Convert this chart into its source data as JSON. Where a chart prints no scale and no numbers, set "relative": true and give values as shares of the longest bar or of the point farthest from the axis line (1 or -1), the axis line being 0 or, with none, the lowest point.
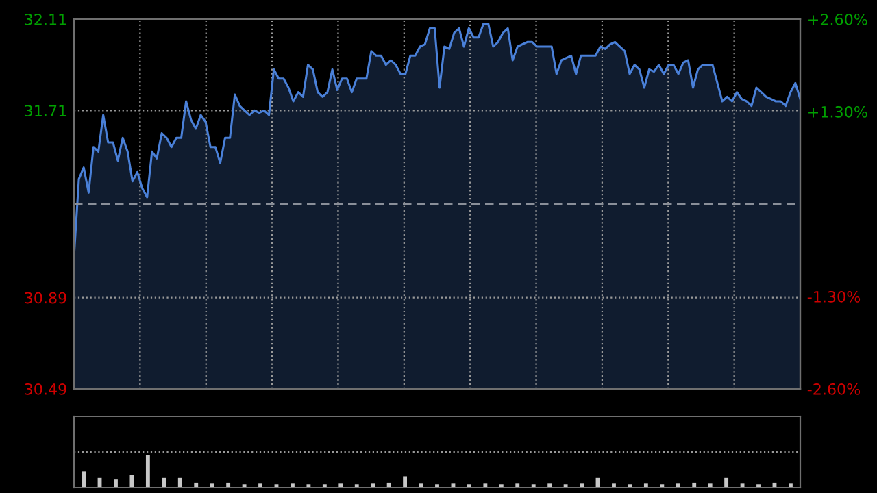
{
  "chart_data": [
    {
      "type": "area",
      "color": "#4a80d8",
      "categories": [
        null,
        null,
        null,
        null,
        null,
        null,
        null,
        null,
        null,
        null,
        null,
        null,
        null,
        null,
        null,
        null,
        null,
        null,
        null,
        null,
        null,
        null,
        null,
        null,
        null,
        null,
        null,
        null,
        null,
        null,
        null,
        null,
        null,
        null,
        null,
        null,
        null,
        null,
        null,
        null,
        null,
        null,
        null,
        null,
        null,
        null,
        null,
        null,
        null,
        null,
        null,
        null,
        null,
        null,
        null,
        null,
        null,
        null,
        null,
        null,
        null,
        null,
        null,
        null,
        null,
        null,
        null,
        null,
        null,
        null,
        null,
        null,
        null,
        null,
        null,
        null,
        null,
        null,
        null,
        null,
        null,
        null,
        null,
        null,
        null,
        null,
        null,
        null,
        null,
        null,
        null,
        null,
        null,
        null,
        null,
        null,
        null,
        null,
        null,
        null,
        null,
        null,
        null,
        null,
        null,
        null,
        null,
        null,
        null,
        null,
        null,
        null,
        null,
        null,
        null,
        null,
        null,
        null,
        null,
        null,
        null,
        null,
        null,
        null,
        null,
        null,
        null,
        null,
        null,
        null,
        null,
        null,
        null,
        null,
        null,
        null,
        null,
        null,
        null,
        null,
        null,
        null,
        null,
        null,
        null,
        null,
        null,
        null,
        null,
        null
      ],
      "values": [
        31.07,
        31.41,
        31.46,
        31.35,
        31.55,
        31.53,
        31.69,
        31.57,
        31.57,
        31.49,
        31.59,
        31.53,
        31.4,
        31.44,
        31.37,
        31.33,
        31.53,
        31.5,
        31.61,
        31.59,
        31.55,
        31.59,
        31.59,
        31.75,
        31.67,
        31.63,
        31.69,
        31.66,
        31.55,
        31.55,
        31.48,
        31.59,
        31.59,
        31.78,
        31.73,
        31.71,
        31.69,
        31.71,
        31.7,
        31.71,
        31.69,
        31.89,
        31.85,
        31.85,
        31.81,
        31.75,
        31.79,
        31.77,
        31.91,
        31.89,
        31.79,
        31.77,
        31.79,
        31.89,
        31.8,
        31.85,
        31.85,
        31.79,
        31.85,
        31.85,
        31.85,
        31.97,
        31.95,
        31.95,
        31.91,
        31.93,
        31.91,
        31.87,
        31.87,
        31.95,
        31.95,
        31.99,
        32.0,
        32.07,
        32.07,
        31.81,
        31.99,
        31.98,
        32.05,
        32.07,
        31.99,
        32.07,
        32.03,
        32.03,
        32.09,
        32.09,
        31.99,
        32.01,
        32.05,
        32.07,
        31.93,
        31.99,
        32.0,
        32.01,
        32.01,
        31.99,
        31.99,
        31.99,
        31.99,
        31.87,
        31.93,
        31.94,
        31.95,
        31.87,
        31.95,
        31.95,
        31.95,
        31.95,
        31.99,
        31.98,
        32.0,
        32.01,
        31.99,
        31.97,
        31.87,
        31.91,
        31.89,
        31.81,
        31.89,
        31.88,
        31.91,
        31.87,
        31.91,
        31.91,
        31.87,
        31.92,
        31.93,
        31.81,
        31.89,
        31.91,
        31.91,
        31.91,
        31.83,
        31.75,
        31.77,
        31.75,
        31.79,
        31.76,
        31.75,
        31.73,
        31.81,
        31.79,
        31.77,
        31.76,
        31.75,
        31.75,
        31.73,
        31.79,
        31.83,
        31.76
      ],
      "ylim": [
        30.49,
        32.11
      ],
      "yticks": [
        32.11,
        31.71,
        30.89,
        30.49
      ],
      "y2lim": [
        -2.6,
        2.6
      ],
      "y2ticks": [
        {
          "value": 2.6,
          "label": "+2.60%"
        },
        {
          "value": 1.3,
          "label": "+1.30%"
        },
        {
          "value": -1.3,
          "label": "-1.30%"
        },
        {
          "value": -2.6,
          "label": "-2.60%"
        }
      ],
      "ref_lines": [
        {
          "axis": "y",
          "value": 31.3,
          "color": "#8a8f99",
          "line_style": "dashed"
        }
      ],
      "grid": true,
      "marker": "none",
      "line_style": "solid",
      "legend": false,
      "tick_labels": "y"
    },
    {
      "type": "bar",
      "relative": true,
      "color": "#c8c8c8",
      "categories": [
        null,
        null,
        null,
        null,
        null,
        null,
        null,
        null,
        null,
        null,
        null,
        null,
        null,
        null,
        null,
        null,
        null,
        null,
        null,
        null,
        null,
        null,
        null,
        null,
        null,
        null,
        null,
        null,
        null,
        null,
        null,
        null,
        null,
        null,
        null,
        null,
        null,
        null,
        null,
        null,
        null,
        null,
        null,
        null,
        null
      ],
      "values": [
        0.5,
        0.3,
        0.25,
        0.4,
        1.0,
        0.3,
        0.3,
        0.15,
        0.12,
        0.15,
        0.1,
        0.12,
        0.1,
        0.12,
        0.1,
        0.1,
        0.12,
        0.1,
        0.12,
        0.15,
        0.35,
        0.12,
        0.1,
        0.12,
        0.1,
        0.12,
        0.1,
        0.12,
        0.1,
        0.12,
        0.1,
        0.12,
        0.3,
        0.12,
        0.1,
        0.12,
        0.1,
        0.12,
        0.15,
        0.12,
        0.3,
        0.12,
        0.1,
        0.15,
        0.12
      ],
      "grid": true,
      "tick_labels": false
    }
  ]
}
